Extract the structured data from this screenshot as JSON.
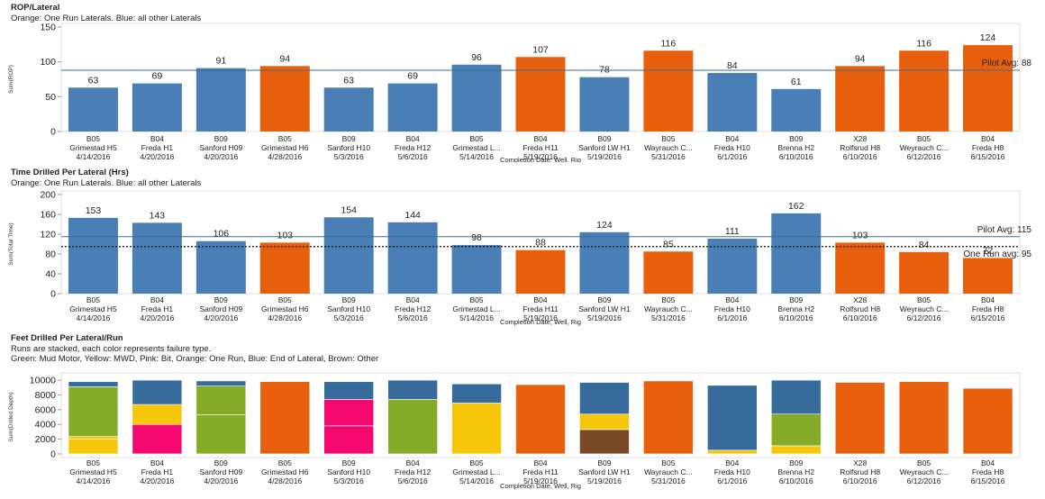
{
  "charts": [
    {
      "title": "ROP/Lateral",
      "subtitles": [
        "Orange: One Run Laterals. Blue: all other Laterals"
      ],
      "ylabel": "Sum(ROP)",
      "xlabel": "Completion Date, Well, Rig",
      "ref_lines": [
        {
          "label": "Pilot Avg: 88",
          "value": 88,
          "style": "solid",
          "color": "#3b6e8e"
        }
      ]
    },
    {
      "title": "Time Drilled Per Lateral (Hrs)",
      "subtitles": [
        "Orange: One Run Laterals. Blue: all other Laterals"
      ],
      "ylabel": "Sum(Total Time)",
      "xlabel": "Completion Date, Well, Rig",
      "ref_lines": [
        {
          "label": "Pilot Avg: 115",
          "value": 115,
          "style": "solid",
          "color": "#3b6e8e"
        },
        {
          "label": "One Run avg: 95",
          "value": 95,
          "style": "dotted",
          "color": "#111111"
        }
      ]
    },
    {
      "title": "Feet Drilled Per Lateral/Run",
      "subtitles": [
        "Runs are stacked, each color represents failure type.",
        "Green: Mud Motor, Yellow: MWD, Pink: Bit, Orange: One Run, Blue: End of Lateral, Brown: Other"
      ],
      "ylabel": "Sum(Drilled Depth)",
      "xlabel": "Completion Date, Well, Rig",
      "ref_lines": []
    }
  ],
  "chart_data": [
    {
      "type": "bar",
      "title": "ROP/Lateral",
      "xlabel": "Completion Date, Well, Rig",
      "ylabel": "Sum(ROP)",
      "ylim": [
        0,
        150
      ],
      "yticks": [
        0,
        50,
        100,
        150
      ],
      "categories": [
        {
          "rig": "B05",
          "well": "Grimestad H5",
          "date": "4/14/2016",
          "type": "other",
          "value": 63
        },
        {
          "rig": "B04",
          "well": "Freda H1",
          "date": "4/20/2016",
          "type": "other",
          "value": 69
        },
        {
          "rig": "B09",
          "well": "Sanford H09",
          "date": "4/20/2016",
          "type": "other",
          "value": 91
        },
        {
          "rig": "B05",
          "well": "Grimestad H6",
          "date": "4/28/2016",
          "type": "onerun",
          "value": 94
        },
        {
          "rig": "B09",
          "well": "Sanford H10",
          "date": "5/3/2016",
          "type": "other",
          "value": 63
        },
        {
          "rig": "B04",
          "well": "Freda H12",
          "date": "5/6/2016",
          "type": "other",
          "value": 69
        },
        {
          "rig": "B05",
          "well": "Grimestad  L...",
          "date": "5/14/2016",
          "type": "other",
          "value": 96
        },
        {
          "rig": "B04",
          "well": "Freda H11",
          "date": "5/19/2016",
          "type": "onerun",
          "value": 107
        },
        {
          "rig": "B09",
          "well": "Sanford LW H1",
          "date": "5/19/2016",
          "type": "other",
          "value": 78
        },
        {
          "rig": "B05",
          "well": "Wayrauch  C...",
          "date": "5/31/2016",
          "type": "onerun",
          "value": 116
        },
        {
          "rig": "B04",
          "well": "Freda H10",
          "date": "6/1/2016",
          "type": "other",
          "value": 84
        },
        {
          "rig": "B09",
          "well": "Brenna H2",
          "date": "6/10/2016",
          "type": "other",
          "value": 61
        },
        {
          "rig": "X28",
          "well": "Rolfsrud H8",
          "date": "6/10/2016",
          "type": "onerun",
          "value": 94
        },
        {
          "rig": "B05",
          "well": "Weyrauch  C...",
          "date": "6/12/2016",
          "type": "onerun",
          "value": 116
        },
        {
          "rig": "B04",
          "well": "Freda H8",
          "date": "6/15/2016",
          "type": "onerun",
          "value": 124
        }
      ],
      "colors": {
        "other": "#4a7fb5",
        "onerun": "#e8600e"
      }
    },
    {
      "type": "bar",
      "title": "Time Drilled Per Lateral (Hrs)",
      "xlabel": "Completion Date, Well, Rig",
      "ylabel": "Sum(Total Time)",
      "ylim": [
        0,
        200
      ],
      "yticks": [
        0,
        40,
        80,
        120,
        160,
        200
      ],
      "categories": [
        {
          "rig": "B05",
          "well": "Grimestad H5",
          "date": "4/14/2016",
          "type": "other",
          "value": 153
        },
        {
          "rig": "B04",
          "well": "Freda H1",
          "date": "4/20/2016",
          "type": "other",
          "value": 143
        },
        {
          "rig": "B09",
          "well": "Sanford H09",
          "date": "4/20/2016",
          "type": "other",
          "value": 106
        },
        {
          "rig": "B05",
          "well": "Grimestad H6",
          "date": "4/28/2016",
          "type": "onerun",
          "value": 103
        },
        {
          "rig": "B09",
          "well": "Sanford H10",
          "date": "5/3/2016",
          "type": "other",
          "value": 154
        },
        {
          "rig": "B04",
          "well": "Freda H12",
          "date": "5/6/2016",
          "type": "other",
          "value": 144
        },
        {
          "rig": "B05",
          "well": "Grimestad  L...",
          "date": "5/14/2016",
          "type": "other",
          "value": 98
        },
        {
          "rig": "B04",
          "well": "Freda H11",
          "date": "5/19/2016",
          "type": "onerun",
          "value": 88
        },
        {
          "rig": "B09",
          "well": "Sanford LW H1",
          "date": "5/19/2016",
          "type": "other",
          "value": 124
        },
        {
          "rig": "B05",
          "well": "Wayrauch  C...",
          "date": "5/31/2016",
          "type": "onerun",
          "value": 85
        },
        {
          "rig": "B04",
          "well": "Freda H10",
          "date": "6/1/2016",
          "type": "other",
          "value": 111
        },
        {
          "rig": "B09",
          "well": "Brenna H2",
          "date": "6/10/2016",
          "type": "other",
          "value": 162
        },
        {
          "rig": "X28",
          "well": "Rolfsrud H8",
          "date": "6/10/2016",
          "type": "onerun",
          "value": 103
        },
        {
          "rig": "B05",
          "well": "Weyrauch  C...",
          "date": "6/12/2016",
          "type": "onerun",
          "value": 84
        },
        {
          "rig": "B04",
          "well": "Freda H8",
          "date": "6/15/2016",
          "type": "onerun",
          "value": 72
        }
      ],
      "colors": {
        "other": "#4a7fb5",
        "onerun": "#e8600e"
      }
    },
    {
      "type": "stacked_bar",
      "title": "Feet Drilled Per Lateral/Run",
      "xlabel": "Completion Date, Well, Rig",
      "ylabel": "Sum(Drilled Depth)",
      "ylim": [
        -500,
        10500
      ],
      "yticks": [
        0,
        2000,
        4000,
        6000,
        8000,
        10000
      ],
      "segment_colors": {
        "mud_motor": "#86ab28",
        "mwd": "#f5c60a",
        "bit": "#f5086e",
        "one_run": "#e8600e",
        "end_of_lateral": "#376b9c",
        "other": "#7a4a26"
      },
      "categories": [
        {
          "rig": "B05",
          "well": "Grimestad H5",
          "date": "4/14/2016",
          "segments": [
            [
              "mwd",
              2000
            ],
            [
              "mwd",
              350
            ],
            [
              "mud_motor",
              6750
            ],
            [
              "end_of_lateral",
              700
            ]
          ]
        },
        {
          "rig": "B04",
          "well": "Freda H1",
          "date": "4/20/2016",
          "segments": [
            [
              "bit",
              4000
            ],
            [
              "mwd",
              2700
            ],
            [
              "end_of_lateral",
              3300
            ]
          ]
        },
        {
          "rig": "B09",
          "well": "Sanford H09",
          "date": "4/20/2016",
          "segments": [
            [
              "mud_motor",
              5300
            ],
            [
              "mud_motor",
              3900
            ],
            [
              "end_of_lateral",
              700
            ]
          ]
        },
        {
          "rig": "B05",
          "well": "Grimestad H6",
          "date": "4/28/2016",
          "segments": [
            [
              "one_run",
              9800
            ]
          ]
        },
        {
          "rig": "B09",
          "well": "Sanford H10",
          "date": "5/3/2016",
          "segments": [
            [
              "bit",
              3800
            ],
            [
              "bit",
              3600
            ],
            [
              "end_of_lateral",
              2400
            ]
          ]
        },
        {
          "rig": "B04",
          "well": "Freda H12",
          "date": "5/6/2016",
          "segments": [
            [
              "mud_motor",
              7400
            ],
            [
              "end_of_lateral",
              2600
            ]
          ]
        },
        {
          "rig": "B05",
          "well": "Grimestad  L...",
          "date": "5/14/2016",
          "segments": [
            [
              "mwd",
              6900
            ],
            [
              "end_of_lateral",
              2600
            ]
          ]
        },
        {
          "rig": "B04",
          "well": "Freda H11",
          "date": "5/19/2016",
          "segments": [
            [
              "one_run",
              9400
            ]
          ]
        },
        {
          "rig": "B09",
          "well": "Sanford LW H1",
          "date": "5/19/2016",
          "segments": [
            [
              "other",
              3300
            ],
            [
              "mwd",
              2100
            ],
            [
              "end_of_lateral",
              4300
            ]
          ]
        },
        {
          "rig": "B05",
          "well": "Wayrauch  C...",
          "date": "5/31/2016",
          "segments": [
            [
              "one_run",
              9900
            ]
          ]
        },
        {
          "rig": "B04",
          "well": "Freda H10",
          "date": "6/1/2016",
          "segments": [
            [
              "mwd",
              500
            ],
            [
              "end_of_lateral",
              8800
            ]
          ]
        },
        {
          "rig": "B09",
          "well": "Brenna H2",
          "date": "6/10/2016",
          "segments": [
            [
              "mwd",
              1100
            ],
            [
              "mud_motor",
              4300
            ],
            [
              "end_of_lateral",
              4600
            ]
          ]
        },
        {
          "rig": "X28",
          "well": "Rolfsrud H8",
          "date": "6/10/2016",
          "segments": [
            [
              "one_run",
              9700
            ]
          ]
        },
        {
          "rig": "B05",
          "well": "Weyrauch  C...",
          "date": "6/12/2016",
          "segments": [
            [
              "one_run",
              9800
            ]
          ]
        },
        {
          "rig": "B04",
          "well": "Freda H8",
          "date": "6/15/2016",
          "segments": [
            [
              "one_run",
              8900
            ]
          ]
        }
      ]
    }
  ]
}
